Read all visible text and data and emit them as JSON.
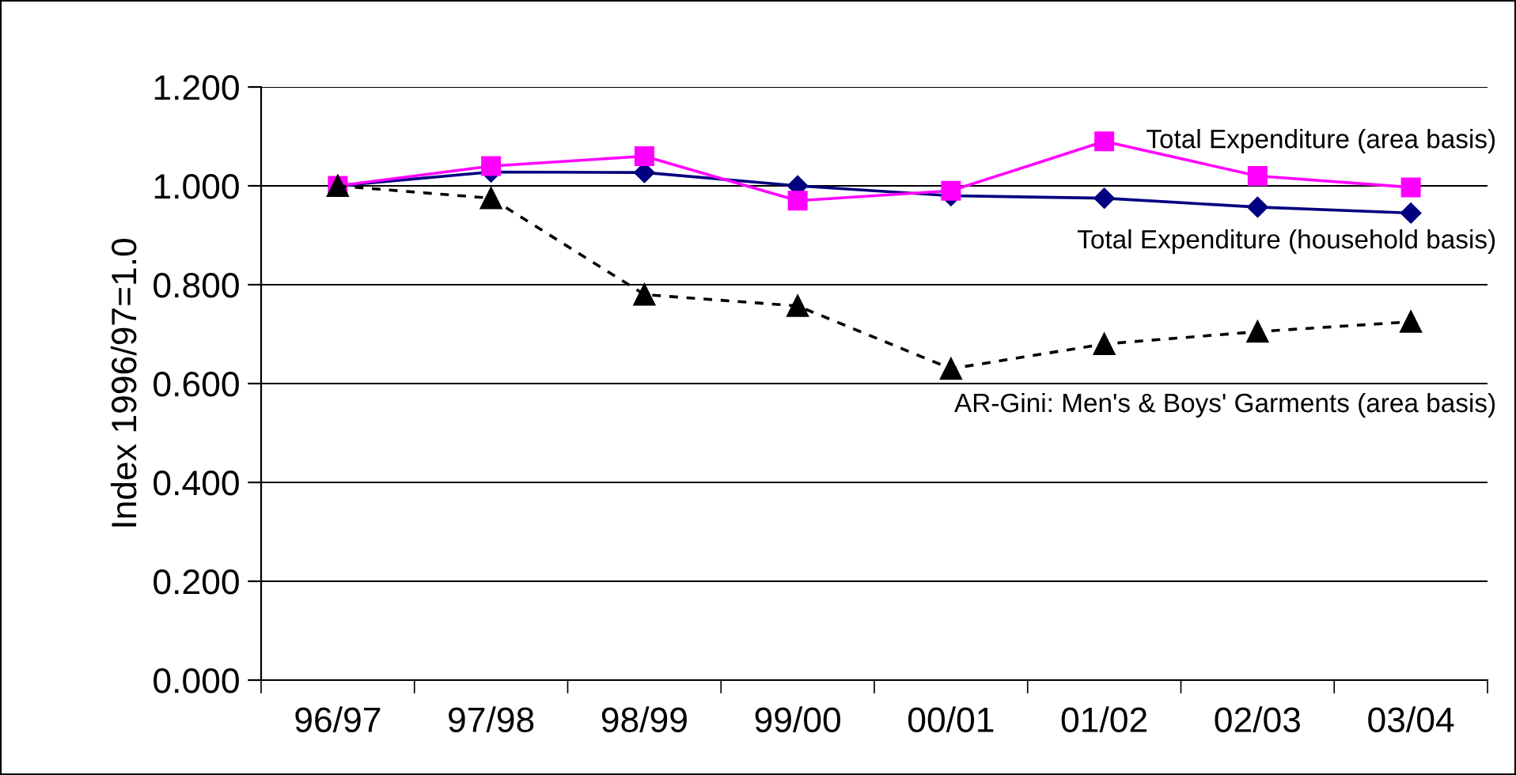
{
  "chart_data": {
    "type": "line",
    "ylabel": "Index 1996/97=1.0",
    "categories": [
      "96/97",
      "97/98",
      "98/99",
      "99/00",
      "00/01",
      "01/02",
      "02/03",
      "03/04"
    ],
    "series": [
      {
        "name": "Total Expenditure (household basis)",
        "color": "#000080",
        "marker": "diamond",
        "line_style": "solid",
        "values": [
          1.0,
          1.028,
          1.027,
          1.0,
          0.98,
          0.975,
          0.957,
          0.945
        ]
      },
      {
        "name": "Total Expenditure (area basis)",
        "color": "#ff00ff",
        "marker": "square",
        "line_style": "solid",
        "values": [
          1.0,
          1.04,
          1.06,
          0.97,
          0.99,
          1.09,
          1.02,
          0.997
        ]
      },
      {
        "name": "AR-Gini: Men's & Boys' Garments (area basis)",
        "color": "#000000",
        "marker": "triangle",
        "line_style": "dashed",
        "values": [
          1.0,
          0.975,
          0.78,
          0.757,
          0.63,
          0.68,
          0.705,
          0.725
        ]
      }
    ],
    "ylim": [
      0,
      1.2
    ],
    "yticks": [
      {
        "value": 0,
        "label": "0.000"
      },
      {
        "value": 0.2,
        "label": "0.200"
      },
      {
        "value": 0.4,
        "label": "0.400"
      },
      {
        "value": 0.6,
        "label": "0.600"
      },
      {
        "value": 0.8,
        "label": "0.800"
      },
      {
        "value": 1.0,
        "label": "1.000"
      },
      {
        "value": 1.2,
        "label": "1.200"
      }
    ],
    "grid": "y",
    "legend": false
  }
}
